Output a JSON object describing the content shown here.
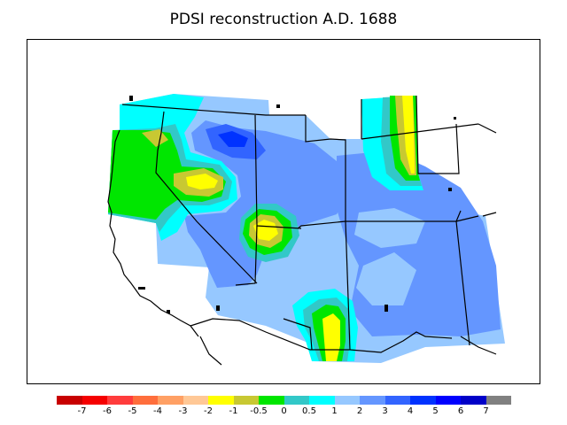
{
  "title": "PDSI reconstruction A.D. 1688",
  "legend": {
    "colors": [
      "#c80000",
      "#f50000",
      "#ff3c3c",
      "#ff6e3c",
      "#ffa064",
      "#ffc896",
      "#ffff00",
      "#c8c832",
      "#00e600",
      "#32c8c8",
      "#00ffff",
      "#96c8ff",
      "#6496ff",
      "#3264ff",
      "#0032ff",
      "#0000ff",
      "#0000c8",
      "#808080"
    ],
    "tick_labels": [
      "-7",
      "-6",
      "-5",
      "-4",
      "-3",
      "-2",
      "-1",
      "-0.5",
      "0",
      "0.5",
      "1",
      "2",
      "3",
      "4",
      "5",
      "6",
      "7"
    ]
  },
  "map": {
    "background_class": "2",
    "palette": {
      "class_0": "#00e600",
      "class_1": "#c8c832",
      "class_-1": "#ffff00",
      "class_0.5": "#32c8c8",
      "class_1.5": "#00ffff",
      "class_2": "#96c8ff",
      "class_3": "#6496ff",
      "class_4": "#3264ff",
      "class_5": "#0032ff"
    }
  }
}
